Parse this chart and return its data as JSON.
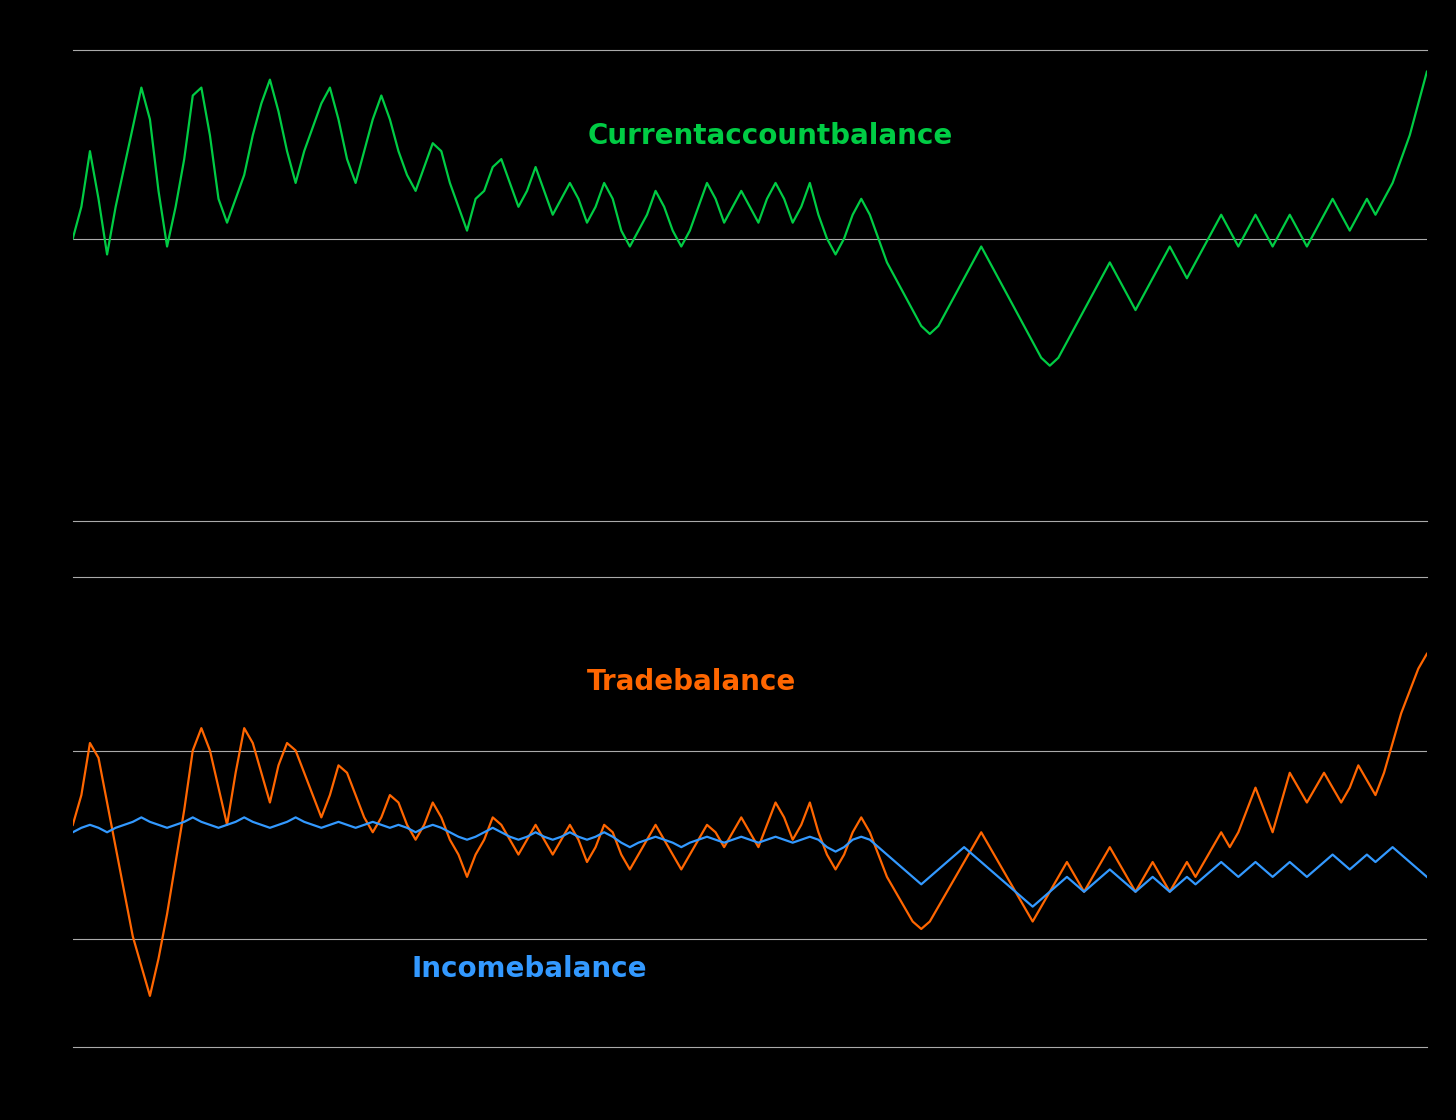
{
  "background_color": "#000000",
  "line_color_top": "#00cc44",
  "line_color_orange": "#ff6600",
  "line_color_blue": "#3399ff",
  "label_color_green": "#00cc44",
  "label_color_orange": "#ff6600",
  "label_color_blue": "#3399ff",
  "top_label": "Currentaccountbalance",
  "orange_label": "Tradebalance",
  "blue_label": "Incomebalance",
  "line_width": 1.6,
  "current_account": [
    0.0,
    2.0,
    5.5,
    2.5,
    -1.0,
    2.0,
    4.5,
    7.0,
    9.5,
    7.5,
    3.0,
    -0.5,
    2.0,
    5.0,
    9.0,
    9.5,
    6.5,
    2.5,
    1.0,
    2.5,
    4.0,
    6.5,
    8.5,
    10.0,
    8.0,
    5.5,
    3.5,
    5.5,
    7.0,
    8.5,
    9.5,
    7.5,
    5.0,
    3.5,
    5.5,
    7.5,
    9.0,
    7.5,
    5.5,
    4.0,
    3.0,
    4.5,
    6.0,
    5.5,
    3.5,
    2.0,
    0.5,
    2.5,
    3.0,
    4.5,
    5.0,
    3.5,
    2.0,
    3.0,
    4.5,
    3.0,
    1.5,
    2.5,
    3.5,
    2.5,
    1.0,
    2.0,
    3.5,
    2.5,
    0.5,
    -0.5,
    0.5,
    1.5,
    3.0,
    2.0,
    0.5,
    -0.5,
    0.5,
    2.0,
    3.5,
    2.5,
    1.0,
    2.0,
    3.0,
    2.0,
    1.0,
    2.5,
    3.5,
    2.5,
    1.0,
    2.0,
    3.5,
    1.5,
    0.0,
    -1.0,
    0.0,
    1.5,
    2.5,
    1.5,
    0.0,
    -1.5,
    -2.5,
    -3.5,
    -4.5,
    -5.5,
    -6.0,
    -5.5,
    -4.5,
    -3.5,
    -2.5,
    -1.5,
    -0.5,
    -1.5,
    -2.5,
    -3.5,
    -4.5,
    -5.5,
    -6.5,
    -7.5,
    -8.0,
    -7.5,
    -6.5,
    -5.5,
    -4.5,
    -3.5,
    -2.5,
    -1.5,
    -2.5,
    -3.5,
    -4.5,
    -3.5,
    -2.5,
    -1.5,
    -0.5,
    -1.5,
    -2.5,
    -1.5,
    -0.5,
    0.5,
    1.5,
    0.5,
    -0.5,
    0.5,
    1.5,
    0.5,
    -0.5,
    0.5,
    1.5,
    0.5,
    -0.5,
    0.5,
    1.5,
    2.5,
    1.5,
    0.5,
    1.5,
    2.5,
    1.5,
    2.5,
    3.5,
    5.0,
    6.5,
    8.5,
    10.5
  ],
  "trade_balance": [
    3.0,
    5.0,
    8.5,
    7.5,
    4.5,
    1.5,
    -1.5,
    -4.5,
    -6.5,
    -8.5,
    -6.0,
    -3.0,
    0.5,
    4.0,
    8.0,
    9.5,
    8.0,
    5.5,
    3.0,
    6.5,
    9.5,
    8.5,
    6.5,
    4.5,
    7.0,
    8.5,
    8.0,
    6.5,
    5.0,
    3.5,
    5.0,
    7.0,
    6.5,
    5.0,
    3.5,
    2.5,
    3.5,
    5.0,
    4.5,
    3.0,
    2.0,
    3.0,
    4.5,
    3.5,
    2.0,
    1.0,
    -0.5,
    1.0,
    2.0,
    3.5,
    3.0,
    2.0,
    1.0,
    2.0,
    3.0,
    2.0,
    1.0,
    2.0,
    3.0,
    2.0,
    0.5,
    1.5,
    3.0,
    2.5,
    1.0,
    0.0,
    1.0,
    2.0,
    3.0,
    2.0,
    1.0,
    0.0,
    1.0,
    2.0,
    3.0,
    2.5,
    1.5,
    2.5,
    3.5,
    2.5,
    1.5,
    3.0,
    4.5,
    3.5,
    2.0,
    3.0,
    4.5,
    2.5,
    1.0,
    0.0,
    1.0,
    2.5,
    3.5,
    2.5,
    1.0,
    -0.5,
    -1.5,
    -2.5,
    -3.5,
    -4.0,
    -3.5,
    -2.5,
    -1.5,
    -0.5,
    0.5,
    1.5,
    2.5,
    1.5,
    0.5,
    -0.5,
    -1.5,
    -2.5,
    -3.5,
    -2.5,
    -1.5,
    -0.5,
    0.5,
    -0.5,
    -1.5,
    -0.5,
    0.5,
    1.5,
    0.5,
    -0.5,
    -1.5,
    -0.5,
    0.5,
    -0.5,
    -1.5,
    -0.5,
    0.5,
    -0.5,
    0.5,
    1.5,
    2.5,
    1.5,
    2.5,
    4.0,
    5.5,
    4.0,
    2.5,
    4.5,
    6.5,
    5.5,
    4.5,
    5.5,
    6.5,
    5.5,
    4.5,
    5.5,
    7.0,
    6.0,
    5.0,
    6.5,
    8.5,
    10.5,
    12.0,
    13.5,
    14.5
  ],
  "income_balance": [
    2.5,
    2.8,
    3.0,
    2.8,
    2.5,
    2.8,
    3.0,
    3.2,
    3.5,
    3.2,
    3.0,
    2.8,
    3.0,
    3.2,
    3.5,
    3.2,
    3.0,
    2.8,
    3.0,
    3.2,
    3.5,
    3.2,
    3.0,
    2.8,
    3.0,
    3.2,
    3.5,
    3.2,
    3.0,
    2.8,
    3.0,
    3.2,
    3.0,
    2.8,
    3.0,
    3.2,
    3.0,
    2.8,
    3.0,
    2.8,
    2.5,
    2.8,
    3.0,
    2.8,
    2.5,
    2.2,
    2.0,
    2.2,
    2.5,
    2.8,
    2.5,
    2.2,
    2.0,
    2.2,
    2.5,
    2.2,
    2.0,
    2.2,
    2.5,
    2.2,
    2.0,
    2.2,
    2.5,
    2.2,
    1.8,
    1.5,
    1.8,
    2.0,
    2.2,
    2.0,
    1.8,
    1.5,
    1.8,
    2.0,
    2.2,
    2.0,
    1.8,
    2.0,
    2.2,
    2.0,
    1.8,
    2.0,
    2.2,
    2.0,
    1.8,
    2.0,
    2.2,
    2.0,
    1.5,
    1.2,
    1.5,
    2.0,
    2.2,
    2.0,
    1.5,
    1.0,
    0.5,
    0.0,
    -0.5,
    -1.0,
    -0.5,
    0.0,
    0.5,
    1.0,
    1.5,
    1.0,
    0.5,
    0.0,
    -0.5,
    -1.0,
    -1.5,
    -2.0,
    -2.5,
    -2.0,
    -1.5,
    -1.0,
    -0.5,
    -1.0,
    -1.5,
    -1.0,
    -0.5,
    0.0,
    -0.5,
    -1.0,
    -1.5,
    -1.0,
    -0.5,
    -1.0,
    -1.5,
    -1.0,
    -0.5,
    -1.0,
    -0.5,
    0.0,
    0.5,
    0.0,
    -0.5,
    0.0,
    0.5,
    0.0,
    -0.5,
    0.0,
    0.5,
    0.0,
    -0.5,
    0.0,
    0.5,
    1.0,
    0.5,
    0.0,
    0.5,
    1.0,
    0.5,
    1.0,
    1.5,
    1.0,
    0.5,
    0.0,
    -0.5
  ]
}
